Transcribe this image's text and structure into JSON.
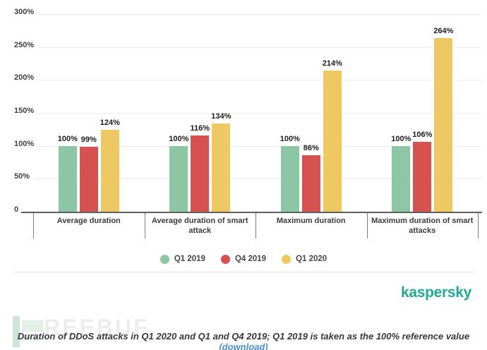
{
  "chart_data": {
    "type": "bar",
    "title": "",
    "categories": [
      "Average duration",
      "Average duration of smart attack",
      "Maximum duration",
      "Maximum duration of smart attacks"
    ],
    "series": [
      {
        "name": "Q1 2019",
        "color": "#8DC6A4",
        "values": [
          100,
          100,
          100,
          100
        ]
      },
      {
        "name": "Q4 2019",
        "color": "#D55250",
        "values": [
          99,
          116,
          86,
          106
        ]
      },
      {
        "name": "Q1 2020",
        "color": "#EEC863",
        "values": [
          124,
          134,
          214,
          264
        ]
      }
    ],
    "value_labels": [
      [
        "100%",
        "99%",
        "124%"
      ],
      [
        "100%",
        "116%",
        "134%"
      ],
      [
        "100%",
        "86%",
        "214%"
      ],
      [
        "100%",
        "106%",
        "264%"
      ]
    ],
    "y_ticks": [
      {
        "label": "300%",
        "value": 300
      },
      {
        "label": "250%",
        "value": 250
      },
      {
        "label": "200%",
        "value": 200
      },
      {
        "label": "150%",
        "value": 150
      },
      {
        "label": "100%",
        "value": 100
      },
      {
        "label": "50%",
        "value": 50
      },
      {
        "label": "0",
        "value": 0
      }
    ],
    "ylim": [
      0,
      300
    ],
    "grid": true,
    "legend_position": "bottom"
  },
  "branding": {
    "logo_text": "kaspersky",
    "logo_color": "#23A992"
  },
  "watermark": {
    "text": "REEBUF"
  },
  "caption": {
    "text": "Duration of DDoS attacks in Q1 2020 and Q1 and Q4 2019; Q1 2019 is taken as the 100% reference value ",
    "link_text": "(download)",
    "link_color": "#4A90D2"
  }
}
